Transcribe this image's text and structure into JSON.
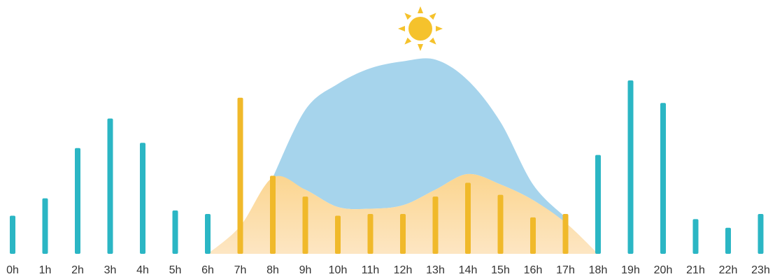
{
  "chart_data": {
    "type": "bar",
    "categories": [
      "0h",
      "1h",
      "2h",
      "3h",
      "4h",
      "5h",
      "6h",
      "7h",
      "8h",
      "9h",
      "10h",
      "11h",
      "12h",
      "13h",
      "14h",
      "15h",
      "16h",
      "17h",
      "18h",
      "19h",
      "20h",
      "21h",
      "22h",
      "23h"
    ],
    "values": [
      22,
      32,
      61,
      78,
      64,
      25,
      23,
      90,
      45,
      33,
      22,
      23,
      23,
      33,
      41,
      34,
      21,
      23,
      57,
      100,
      87,
      20,
      15,
      23
    ],
    "ylim": [
      0,
      100
    ],
    "grid": false,
    "title": "",
    "xlabel": "",
    "ylabel": "",
    "overlays": [
      {
        "type": "area",
        "fill": "sun-curve",
        "x": [
          6,
          7,
          8,
          9,
          10,
          11,
          12,
          13,
          14,
          15,
          16,
          17,
          18
        ],
        "y": [
          0,
          16,
          44,
          37,
          27,
          26,
          28,
          37,
          46,
          40,
          31,
          18,
          0
        ]
      },
      {
        "type": "area",
        "fill": "daylight",
        "x": [
          8,
          9,
          10,
          11,
          12,
          13,
          14,
          15,
          16,
          17
        ],
        "y": [
          44,
          83,
          98,
          107,
          111,
          112,
          100,
          76,
          40,
          21
        ]
      }
    ],
    "icon": "sun-icon",
    "colors": {
      "bar": "#2bb6c4",
      "bar_in_sun": "#f0b92a",
      "sun_area": "#fbdca8",
      "sky_area": "#a6d4ec",
      "sun": "#f5c22c",
      "tick_text": "#333333"
    }
  }
}
